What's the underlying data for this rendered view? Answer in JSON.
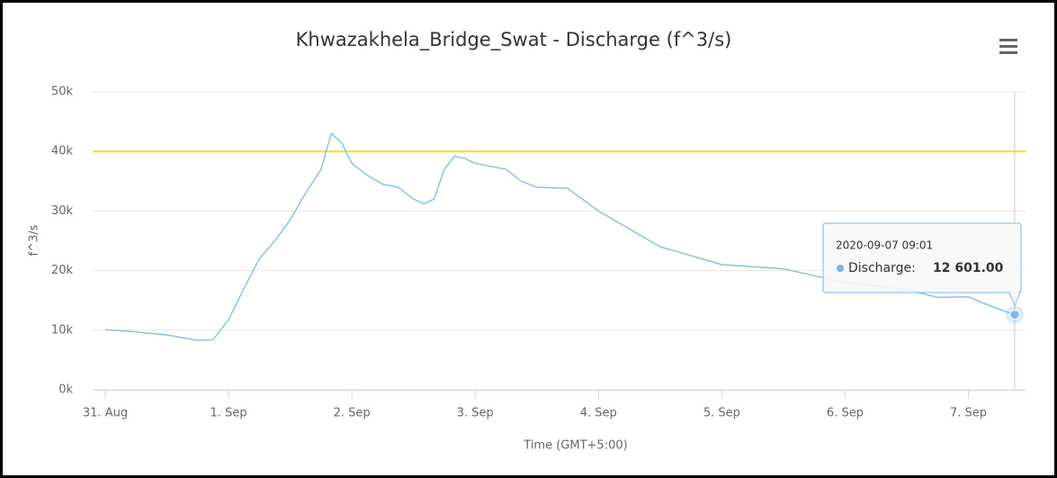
{
  "chart_data": {
    "type": "line",
    "title": "Khwazakhela_Bridge_Swat - Discharge (f^3/s)",
    "x_label": "Time (GMT+5:00)",
    "y_label": "f^3/s",
    "xlim": [
      "2020-08-31 00:00",
      "2020-09-07 09:01"
    ],
    "xticks": [
      {
        "value": "2020-08-31 00:00",
        "label": "31. Aug"
      },
      {
        "value": "2020-09-01 00:00",
        "label": "1. Sep"
      },
      {
        "value": "2020-09-02 00:00",
        "label": "2. Sep"
      },
      {
        "value": "2020-09-03 00:00",
        "label": "3. Sep"
      },
      {
        "value": "2020-09-04 00:00",
        "label": "4. Sep"
      },
      {
        "value": "2020-09-05 00:00",
        "label": "5. Sep"
      },
      {
        "value": "2020-09-06 00:00",
        "label": "6. Sep"
      },
      {
        "value": "2020-09-07 00:00",
        "label": "7. Sep"
      }
    ],
    "ylim": [
      0,
      50000
    ],
    "yticks": [
      {
        "value": 0,
        "label": "0k"
      },
      {
        "value": 10000,
        "label": "10k"
      },
      {
        "value": 20000,
        "label": "20k"
      },
      {
        "value": 30000,
        "label": "30k"
      },
      {
        "value": 40000,
        "label": "40k"
      },
      {
        "value": 50000,
        "label": "50k"
      }
    ],
    "grid": true,
    "plot_lines": [
      {
        "value": 40000,
        "color": "#e8e02c"
      }
    ],
    "series": [
      {
        "name": "Discharge",
        "color": "#8cc0e9",
        "x": [
          "2020-08-31 00:00",
          "2020-08-31 06:00",
          "2020-08-31 12:00",
          "2020-08-31 18:00",
          "2020-08-31 21:00",
          "2020-09-01 00:00",
          "2020-09-01 03:00",
          "2020-09-01 06:00",
          "2020-09-01 09:00",
          "2020-09-01 12:00",
          "2020-09-01 15:00",
          "2020-09-01 18:00",
          "2020-09-01 20:00",
          "2020-09-01 22:00",
          "2020-09-02 00:00",
          "2020-09-02 03:00",
          "2020-09-02 06:00",
          "2020-09-02 09:00",
          "2020-09-02 12:00",
          "2020-09-02 14:00",
          "2020-09-02 16:00",
          "2020-09-02 18:00",
          "2020-09-02 20:00",
          "2020-09-02 22:00",
          "2020-09-03 00:00",
          "2020-09-03 06:00",
          "2020-09-03 09:00",
          "2020-09-03 12:00",
          "2020-09-03 18:00",
          "2020-09-04 00:00",
          "2020-09-04 06:00",
          "2020-09-04 12:00",
          "2020-09-04 18:00",
          "2020-09-05 00:00",
          "2020-09-05 12:00",
          "2020-09-06 00:00",
          "2020-09-06 12:00",
          "2020-09-06 18:00",
          "2020-09-07 00:00",
          "2020-09-07 03:00",
          "2020-09-07 06:00",
          "2020-09-07 09:01"
        ],
        "values": [
          10100,
          9700,
          9200,
          8300,
          8400,
          11800,
          17000,
          22000,
          25000,
          28500,
          33000,
          37000,
          43000,
          41500,
          38000,
          36000,
          34500,
          34000,
          32000,
          31200,
          32000,
          37000,
          39200,
          38800,
          38000,
          37000,
          35000,
          34000,
          33800,
          30000,
          27000,
          24000,
          22500,
          21000,
          20300,
          18000,
          16800,
          15500,
          15600,
          14500,
          13500,
          12601
        ]
      }
    ],
    "tooltip": {
      "header": "2020-09-07 09:01",
      "label": "Discharge:",
      "value": "12 601.00"
    }
  }
}
